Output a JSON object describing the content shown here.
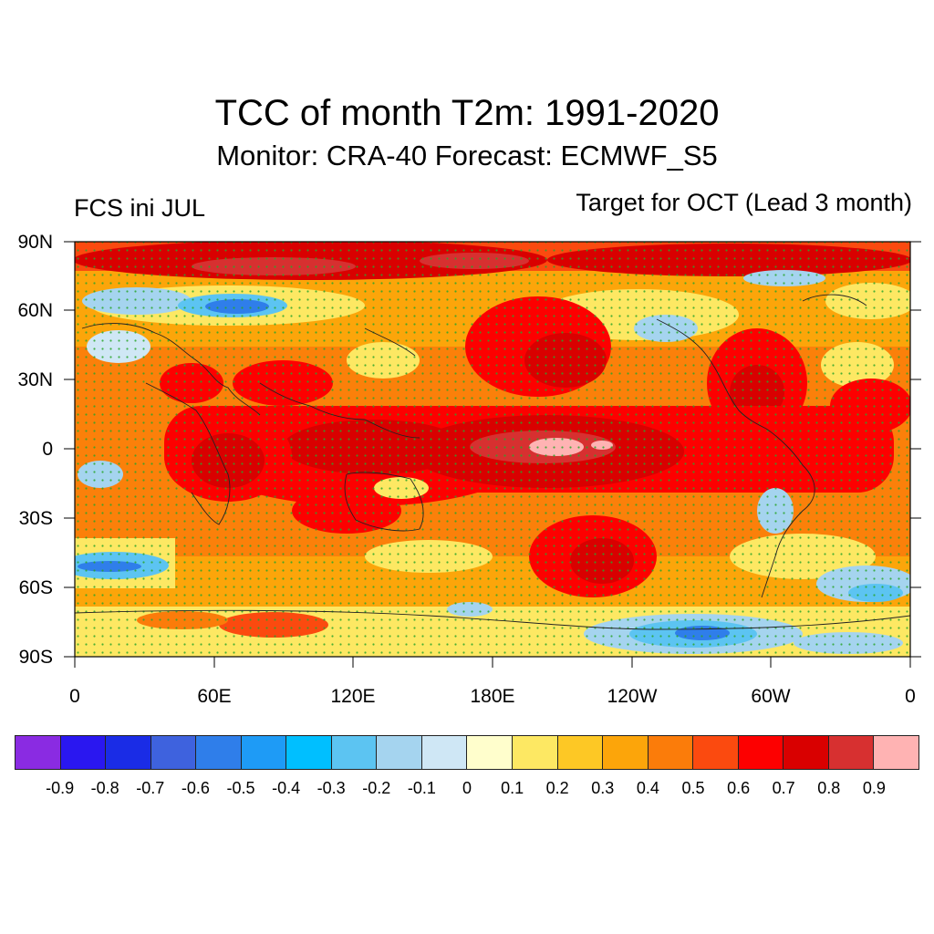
{
  "title": "TCC of month T2m: 1991-2020",
  "subtitle": "Monitor: CRA-40   Forecast: ECMWF_S5",
  "left_note": "FCS ini JUL",
  "right_note": "Target for OCT (Lead 3 month)",
  "lat_labels": [
    "90N",
    "60N",
    "30N",
    "0",
    "30S",
    "60S",
    "90S"
  ],
  "lon_labels": [
    "0",
    "60E",
    "120E",
    "180E",
    "120W",
    "60W",
    "0"
  ],
  "legend": {
    "colors": [
      "#8a2be2",
      "#2a17f0",
      "#1a2ce6",
      "#3e62de",
      "#2f7eea",
      "#1e9bf6",
      "#00bfff",
      "#5cc4f2",
      "#a5d4ef",
      "#cfe7f5",
      "#fffecc",
      "#fde863",
      "#fdc825",
      "#fca50a",
      "#fb7c0a",
      "#fb4a0f",
      "#fd0000",
      "#d90000",
      "#d73030",
      "#ffb3b3"
    ],
    "labels": [
      "-0.9",
      "-0.8",
      "-0.7",
      "-0.6",
      "-0.5",
      "-0.4",
      "-0.3",
      "-0.2",
      "-0.1",
      "0",
      "0.1",
      "0.2",
      "0.3",
      "0.4",
      "0.5",
      "0.6",
      "0.7",
      "0.8",
      "0.9"
    ]
  }
}
